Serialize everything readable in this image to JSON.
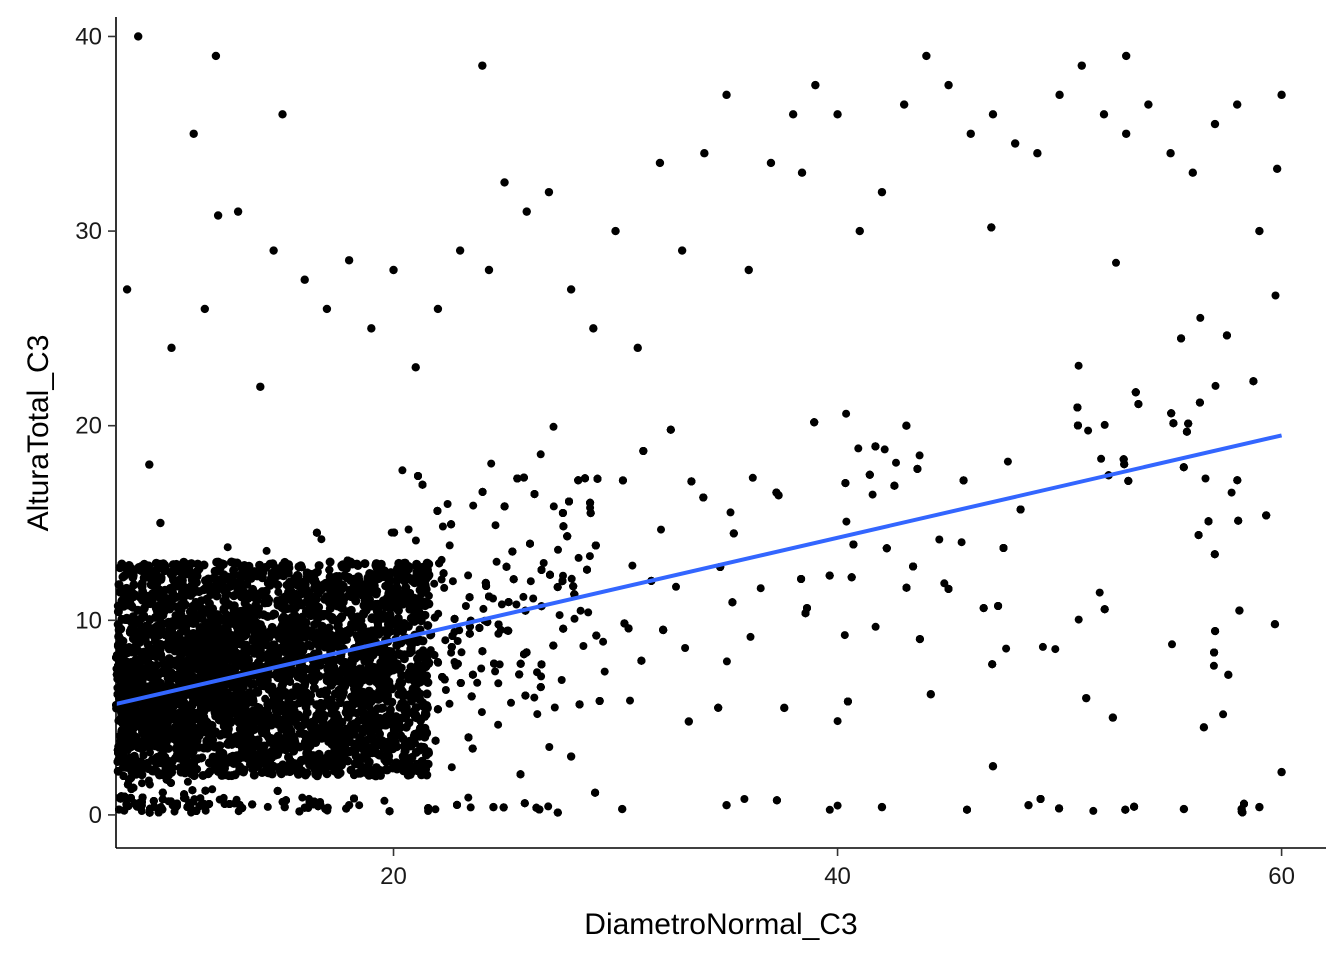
{
  "chart_data": {
    "type": "scatter",
    "xlabel": "DiametroNormal_C3",
    "ylabel": "AlturaTotal_C3",
    "xlim": [
      7.5,
      62.0
    ],
    "ylim": [
      -1.7,
      41.0
    ],
    "x_ticks": [
      20,
      40,
      60
    ],
    "y_ticks": [
      0,
      10,
      20,
      30,
      40
    ],
    "grid": false,
    "legend": "none",
    "point_color": "#000000",
    "trend_color": "#3366FF",
    "trend_line": {
      "x": [
        7.5,
        60
      ],
      "y": [
        5.7,
        19.5
      ]
    },
    "points_note": "dense cloud; representative sample listed",
    "series": [
      {
        "x": [
          8,
          9,
          9.5,
          11,
          12,
          10,
          11.5,
          13,
          14,
          15,
          16,
          17,
          18,
          19,
          20,
          21,
          22,
          23,
          24,
          25,
          26,
          27,
          28,
          29,
          30,
          31,
          32,
          33,
          34,
          35,
          36,
          37,
          38,
          39,
          40,
          41,
          42,
          43,
          44,
          45,
          46,
          47,
          48,
          49,
          50,
          51,
          52,
          53,
          54,
          55,
          56,
          57,
          58,
          59,
          60,
          8.5,
          12.1,
          14.6,
          24.3,
          38.4,
          43.1,
          53.0,
          59.8,
          52.4,
          56.5,
          57.6,
          58.1,
          59.7,
          60,
          51.2,
          47.0,
          44.2,
          37.6,
          33.3,
          28.0,
          10.8,
          15.1,
          18.0,
          24.5,
          30.3,
          35.0,
          42.0,
          48.6,
          55.6,
          58.2,
          59.0
        ],
        "y": [
          27.0,
          18.0,
          15.0,
          35.0,
          39.0,
          24.0,
          26.0,
          31.0,
          22.0,
          36.0,
          27.5,
          26.0,
          28.5,
          25.0,
          28.0,
          23.0,
          26.0,
          29.0,
          38.5,
          32.5,
          31.0,
          32.0,
          27.0,
          25.0,
          30.0,
          24.0,
          33.5,
          29.0,
          34.0,
          37.0,
          28.0,
          33.5,
          36.0,
          37.5,
          36.0,
          30.0,
          32.0,
          36.5,
          39.0,
          37.5,
          35.0,
          36.0,
          34.5,
          34.0,
          37.0,
          38.5,
          36.0,
          39.0,
          36.5,
          34.0,
          33.0,
          35.5,
          36.5,
          30.0,
          37.0,
          40.0,
          30.8,
          29.0,
          28.0,
          33.0,
          20.0,
          35.0,
          33.2,
          5.0,
          4.5,
          7.2,
          10.5,
          9.8,
          2.2,
          6.0,
          2.5,
          6.2,
          5.5,
          4.8,
          3.0,
          0.6,
          0.4,
          0.5,
          0.4,
          0.3,
          0.5,
          0.4,
          0.5,
          0.3,
          0.3,
          0.4
        ]
      }
    ]
  }
}
